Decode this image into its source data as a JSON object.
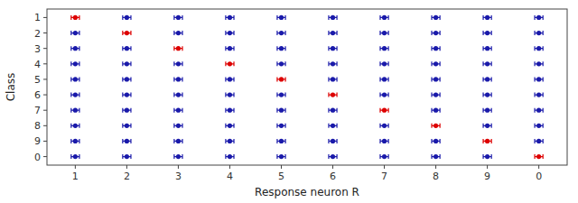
{
  "chart_data": {
    "type": "scatter",
    "x_label": "Response neuron R",
    "y_label": "Class",
    "categories": [
      "1",
      "2",
      "3",
      "4",
      "5",
      "6",
      "7",
      "8",
      "9",
      "0"
    ],
    "y_categories": [
      "1",
      "2",
      "3",
      "4",
      "5",
      "6",
      "7",
      "8",
      "9",
      "0"
    ],
    "xlim": [
      0.45,
      10.55
    ],
    "ylim": [
      0.45,
      10.55
    ],
    "grid": false,
    "marker": "circle",
    "series": [
      {
        "x": [
          "1",
          "2",
          "3",
          "4",
          "5",
          "6",
          "7",
          "8",
          "9",
          "0",
          "1",
          "2",
          "3",
          "4",
          "5",
          "6",
          "7",
          "8",
          "9",
          "0",
          "1",
          "2",
          "3",
          "4",
          "5",
          "6",
          "7",
          "8",
          "9",
          "0",
          "1",
          "2",
          "3",
          "4",
          "5",
          "6",
          "7",
          "8",
          "9",
          "0",
          "1",
          "2",
          "3",
          "4",
          "5",
          "6",
          "7",
          "8",
          "9",
          "0",
          "1",
          "2",
          "3",
          "4",
          "5",
          "6",
          "7",
          "8",
          "9",
          "0",
          "1",
          "2",
          "3",
          "4",
          "5",
          "6",
          "7",
          "8",
          "9",
          "0",
          "1",
          "2",
          "3",
          "4",
          "5",
          "6",
          "7",
          "8",
          "9",
          "0",
          "1",
          "2",
          "3",
          "4",
          "5",
          "6",
          "7",
          "8",
          "9",
          "0",
          "1",
          "2",
          "3",
          "4",
          "5",
          "6",
          "7",
          "8",
          "9",
          "0"
        ],
        "y": [
          "1",
          "1",
          "1",
          "1",
          "1",
          "1",
          "1",
          "1",
          "1",
          "1",
          "2",
          "2",
          "2",
          "2",
          "2",
          "2",
          "2",
          "2",
          "2",
          "2",
          "3",
          "3",
          "3",
          "3",
          "3",
          "3",
          "3",
          "3",
          "3",
          "3",
          "4",
          "4",
          "4",
          "4",
          "4",
          "4",
          "4",
          "4",
          "4",
          "4",
          "5",
          "5",
          "5",
          "5",
          "5",
          "5",
          "5",
          "5",
          "5",
          "5",
          "6",
          "6",
          "6",
          "6",
          "6",
          "6",
          "6",
          "6",
          "6",
          "6",
          "7",
          "7",
          "7",
          "7",
          "7",
          "7",
          "7",
          "7",
          "7",
          "7",
          "8",
          "8",
          "8",
          "8",
          "8",
          "8",
          "8",
          "8",
          "8",
          "8",
          "9",
          "9",
          "9",
          "9",
          "9",
          "9",
          "9",
          "9",
          "9",
          "9",
          "0",
          "0",
          "0",
          "0",
          "0",
          "0",
          "0",
          "0",
          "0",
          "0"
        ],
        "xerr": [
          0.08,
          0.08,
          0.08,
          0.08,
          0.08,
          0.08,
          0.08,
          0.08,
          0.08,
          0.08,
          0.08,
          0.08,
          0.08,
          0.08,
          0.08,
          0.08,
          0.08,
          0.08,
          0.08,
          0.08,
          0.08,
          0.08,
          0.08,
          0.08,
          0.08,
          0.08,
          0.08,
          0.08,
          0.08,
          0.08,
          0.08,
          0.08,
          0.08,
          0.08,
          0.08,
          0.08,
          0.08,
          0.08,
          0.08,
          0.08,
          0.08,
          0.08,
          0.08,
          0.08,
          0.08,
          0.08,
          0.08,
          0.08,
          0.08,
          0.08,
          0.08,
          0.08,
          0.08,
          0.08,
          0.08,
          0.08,
          0.08,
          0.08,
          0.08,
          0.08,
          0.08,
          0.08,
          0.08,
          0.08,
          0.08,
          0.08,
          0.08,
          0.08,
          0.08,
          0.08,
          0.08,
          0.08,
          0.08,
          0.08,
          0.08,
          0.08,
          0.08,
          0.08,
          0.08,
          0.08,
          0.08,
          0.08,
          0.08,
          0.08,
          0.08,
          0.08,
          0.08,
          0.08,
          0.08,
          0.08,
          0.08,
          0.08,
          0.08,
          0.08,
          0.08,
          0.08,
          0.08,
          0.08,
          0.08,
          0.08
        ],
        "colors": [
          "#dd0000",
          "#1a1aaa",
          "#1a1aaa",
          "#1a1aaa",
          "#1a1aaa",
          "#1a1aaa",
          "#1a1aaa",
          "#1a1aaa",
          "#1a1aaa",
          "#1a1aaa",
          "#1a1aaa",
          "#dd0000",
          "#1a1aaa",
          "#1a1aaa",
          "#1a1aaa",
          "#1a1aaa",
          "#1a1aaa",
          "#1a1aaa",
          "#1a1aaa",
          "#1a1aaa",
          "#1a1aaa",
          "#1a1aaa",
          "#dd0000",
          "#1a1aaa",
          "#1a1aaa",
          "#1a1aaa",
          "#1a1aaa",
          "#1a1aaa",
          "#1a1aaa",
          "#1a1aaa",
          "#1a1aaa",
          "#1a1aaa",
          "#1a1aaa",
          "#dd0000",
          "#1a1aaa",
          "#1a1aaa",
          "#1a1aaa",
          "#1a1aaa",
          "#1a1aaa",
          "#1a1aaa",
          "#1a1aaa",
          "#1a1aaa",
          "#1a1aaa",
          "#1a1aaa",
          "#dd0000",
          "#1a1aaa",
          "#1a1aaa",
          "#1a1aaa",
          "#1a1aaa",
          "#1a1aaa",
          "#1a1aaa",
          "#1a1aaa",
          "#1a1aaa",
          "#1a1aaa",
          "#1a1aaa",
          "#dd0000",
          "#1a1aaa",
          "#1a1aaa",
          "#1a1aaa",
          "#1a1aaa",
          "#1a1aaa",
          "#1a1aaa",
          "#1a1aaa",
          "#1a1aaa",
          "#1a1aaa",
          "#1a1aaa",
          "#dd0000",
          "#1a1aaa",
          "#1a1aaa",
          "#1a1aaa",
          "#1a1aaa",
          "#1a1aaa",
          "#1a1aaa",
          "#1a1aaa",
          "#1a1aaa",
          "#1a1aaa",
          "#1a1aaa",
          "#dd0000",
          "#1a1aaa",
          "#1a1aaa",
          "#1a1aaa",
          "#1a1aaa",
          "#1a1aaa",
          "#1a1aaa",
          "#1a1aaa",
          "#1a1aaa",
          "#1a1aaa",
          "#1a1aaa",
          "#dd0000",
          "#1a1aaa",
          "#1a1aaa",
          "#1a1aaa",
          "#1a1aaa",
          "#1a1aaa",
          "#1a1aaa",
          "#1a1aaa",
          "#1a1aaa",
          "#1a1aaa",
          "#1a1aaa",
          "#dd0000"
        ]
      }
    ]
  }
}
